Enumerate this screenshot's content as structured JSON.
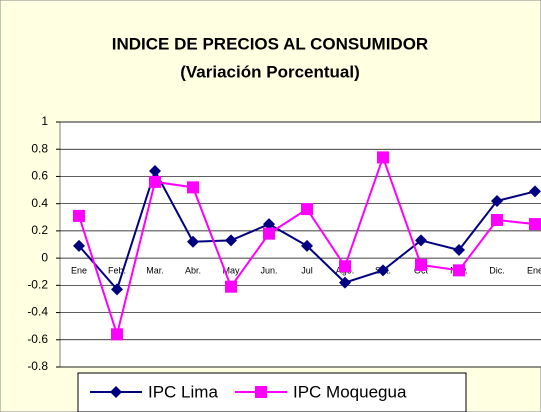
{
  "chart_data": {
    "type": "line",
    "title": "INDICE DE PRECIOS AL CONSUMIDOR",
    "subtitle": "(Variación Porcentual)",
    "categories": [
      "Ene",
      "Feb.",
      "Mar.",
      "Abr.",
      "May",
      "Jun.",
      "Jul",
      "Ago.",
      "Set.",
      "Oct",
      "Nov.",
      "Dic.",
      "Ene"
    ],
    "series": [
      {
        "name": "IPC Lima",
        "color": "#000080",
        "marker": "diamond",
        "values": [
          0.09,
          -0.23,
          0.64,
          0.12,
          0.13,
          0.25,
          0.09,
          -0.18,
          -0.09,
          0.13,
          0.06,
          0.42,
          0.49
        ]
      },
      {
        "name": "IPC Moquegua",
        "color": "#FF00FF",
        "marker": "square",
        "values": [
          0.31,
          -0.56,
          0.56,
          0.52,
          -0.21,
          0.18,
          0.36,
          -0.06,
          0.74,
          -0.05,
          -0.09,
          0.28,
          0.25
        ]
      }
    ],
    "ylim": [
      -0.8,
      1
    ],
    "yticks": [
      -0.8,
      -0.6,
      -0.4,
      -0.2,
      0,
      0.2,
      0.4,
      0.6,
      0.8,
      1
    ],
    "grid": true
  }
}
